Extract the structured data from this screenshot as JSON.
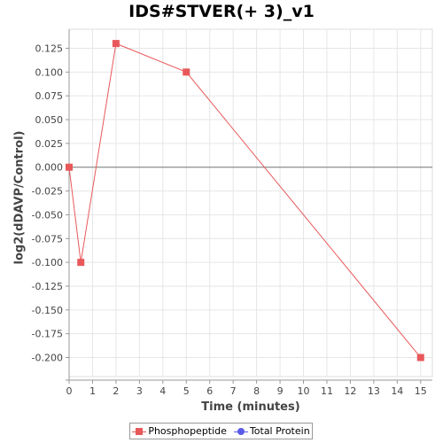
{
  "chart_data": {
    "type": "line",
    "title": "IDS#STVER(+ 3)_v1",
    "xlabel": "Time (minutes)",
    "ylabel": "log2(dDAVP/Control)",
    "xlim": [
      0,
      15.5
    ],
    "ylim": [
      -0.22,
      0.145
    ],
    "x_ticks": [
      0,
      1,
      2,
      3,
      4,
      5,
      6,
      7,
      8,
      9,
      10,
      11,
      12,
      13,
      14,
      15
    ],
    "y_ticks": [
      0.125,
      0.1,
      0.075,
      0.05,
      0.025,
      0.0,
      -0.025,
      -0.05,
      -0.075,
      -0.1,
      -0.125,
      -0.15,
      -0.175,
      -0.2
    ],
    "y_tick_labels": [
      "0.125",
      "0.100",
      "0.075",
      "0.050",
      "0.025",
      "0.000",
      "-0.025",
      "-0.050",
      "-0.075",
      "-0.100",
      "-0.125",
      "-0.150",
      "-0.175",
      "-0.200"
    ],
    "zero_line": true,
    "grid": true,
    "legend_position": "bottom",
    "series": [
      {
        "name": "Phosphopeptide",
        "color": "#e8585a",
        "marker": "square",
        "x": [
          0,
          0.5,
          2,
          5,
          15
        ],
        "y": [
          0.0,
          -0.1,
          0.13,
          0.1,
          -0.2
        ]
      },
      {
        "name": "Total Protein",
        "color": "#5a5ae8",
        "marker": "circle",
        "x": [],
        "y": []
      }
    ]
  }
}
